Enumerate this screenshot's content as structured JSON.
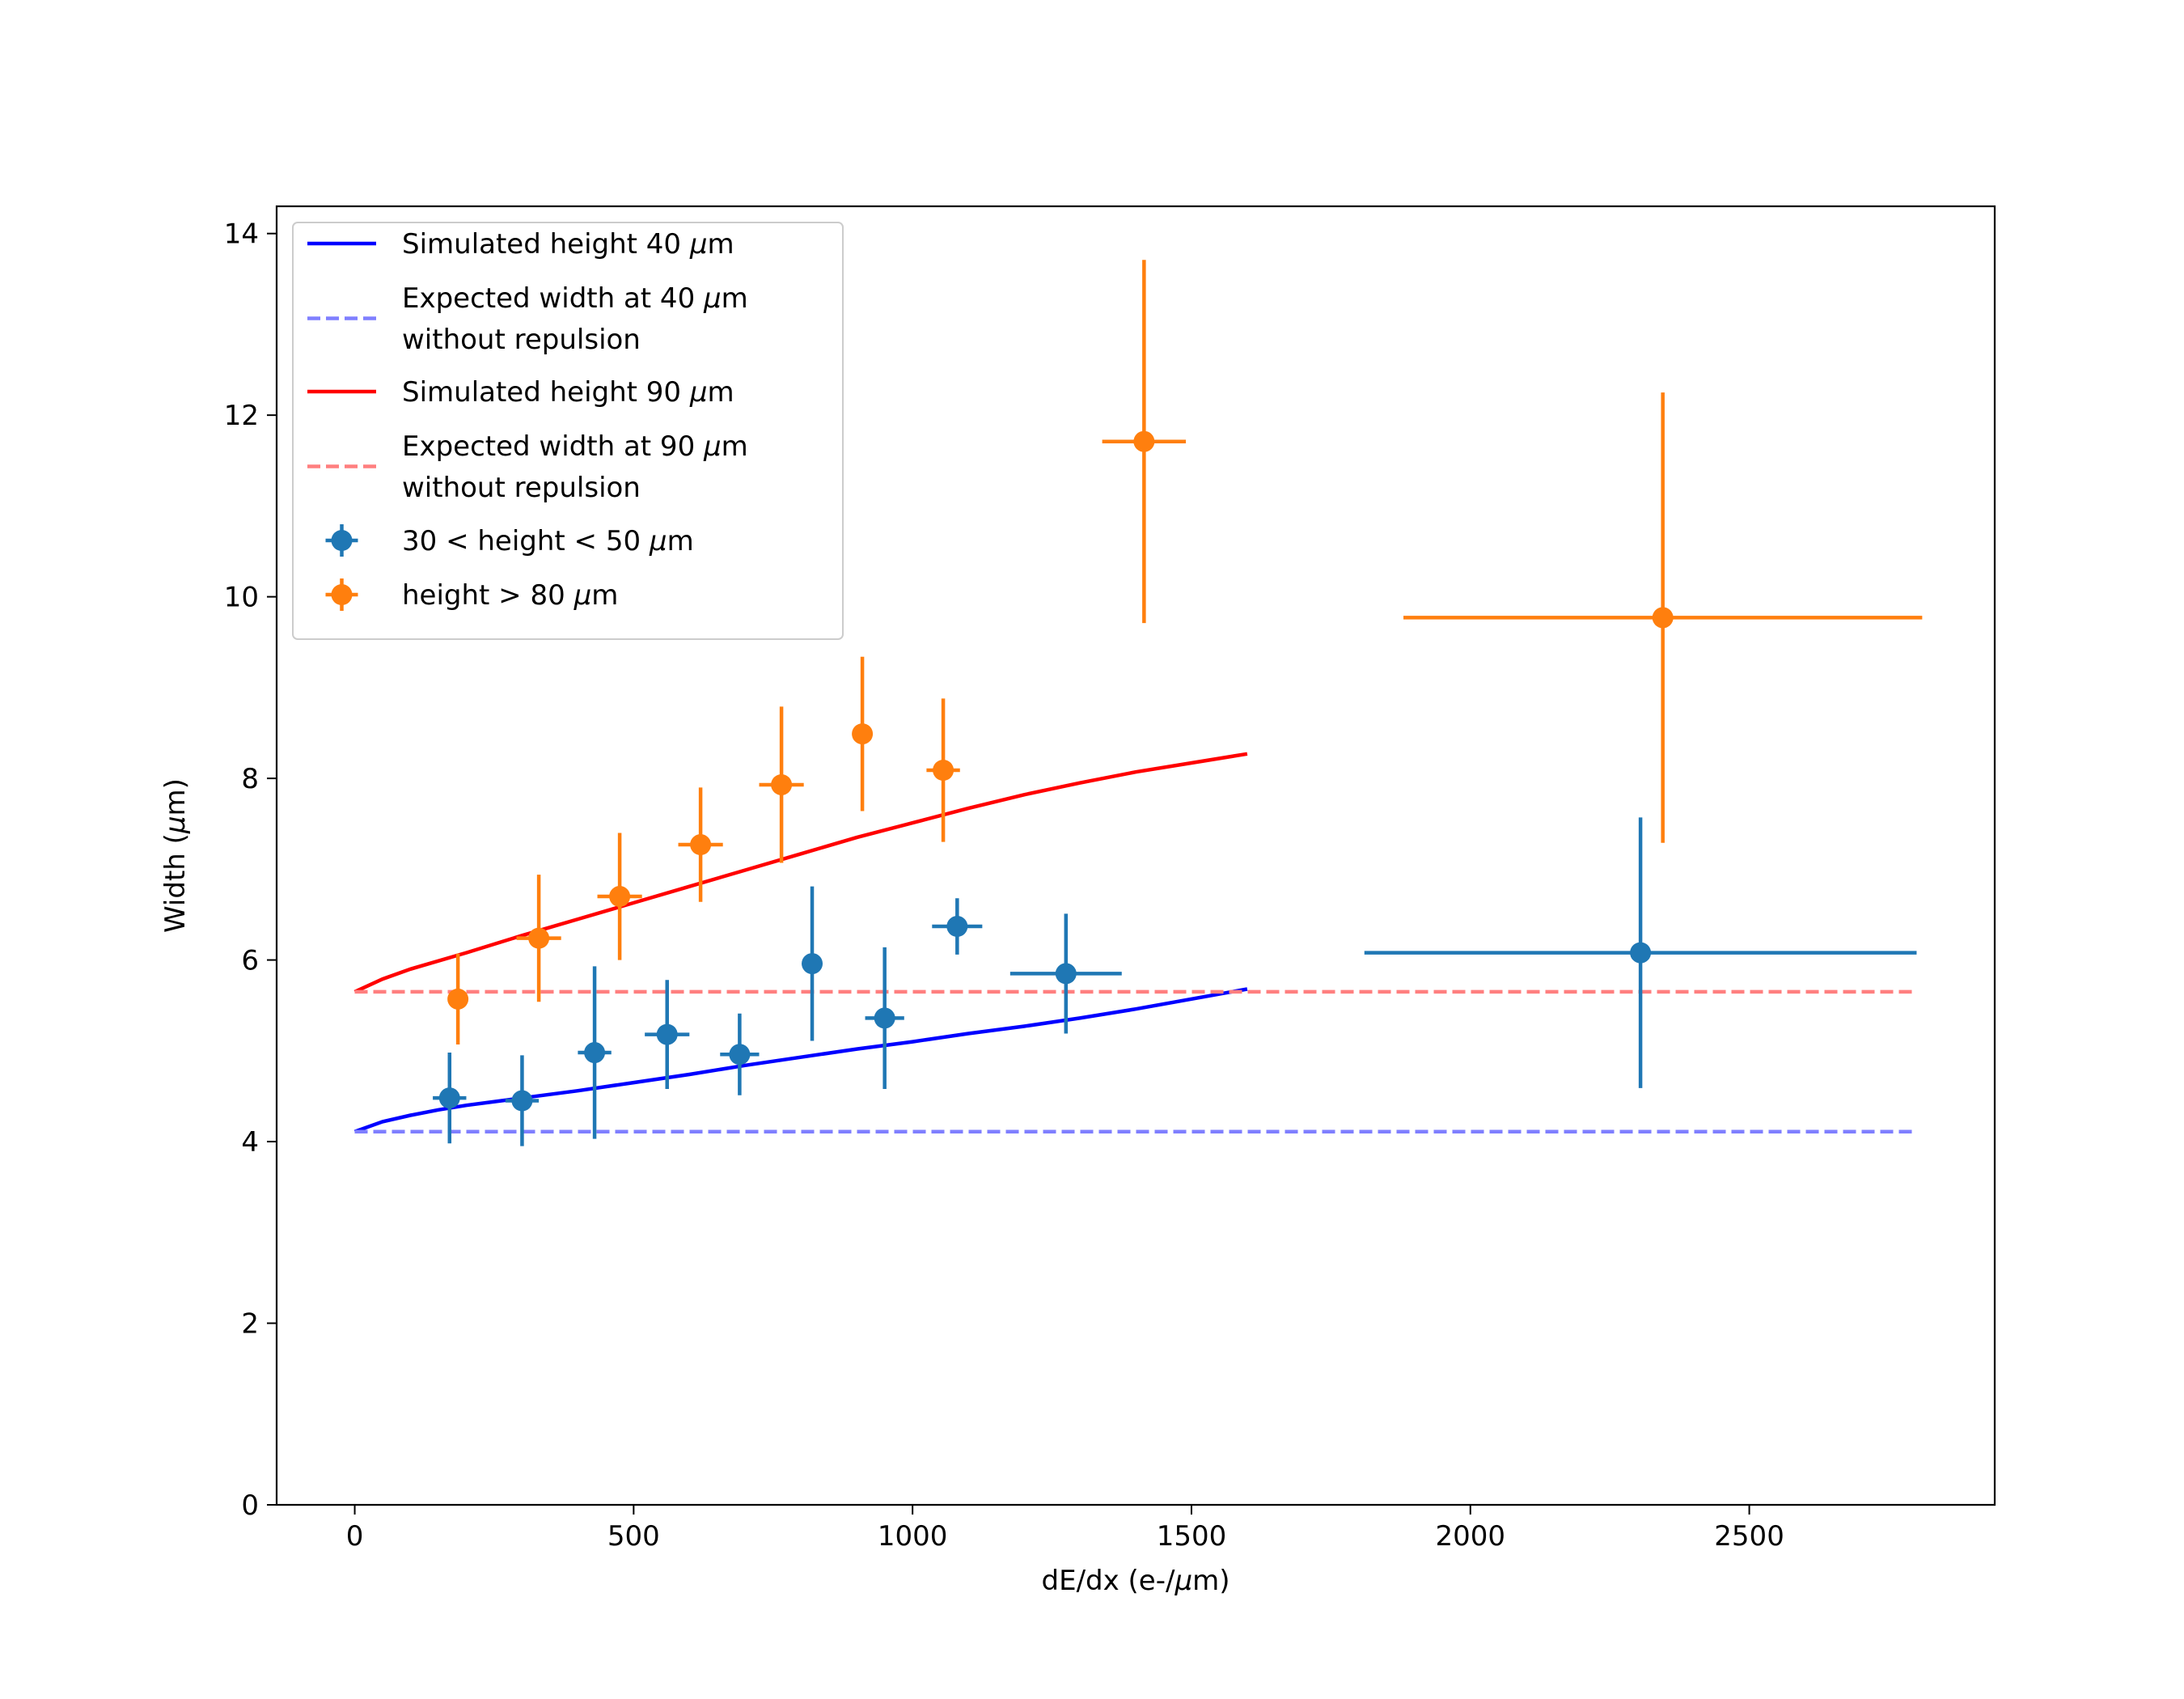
{
  "chart_data": {
    "type": "scatter",
    "xlabel_parts": [
      "dE/dx (e-/",
      "μ",
      "m)"
    ],
    "ylabel_parts": [
      "Width (",
      "μ",
      "m)"
    ],
    "xlim": [
      -140,
      2940
    ],
    "ylim": [
      0,
      14.3
    ],
    "xticks": [
      0,
      500,
      1000,
      1500,
      2000,
      2500
    ],
    "yticks": [
      0,
      2,
      4,
      6,
      8,
      10,
      12,
      14
    ],
    "grid": false,
    "legend_position": "top-left",
    "lines": [
      {
        "name_parts": [
          "Simulated height 40 ",
          "μ",
          "m"
        ],
        "color": "#0000ff",
        "style": "solid",
        "x": [
          0,
          50,
          100,
          150,
          200,
          300,
          400,
          500,
          600,
          700,
          800,
          900,
          1000,
          1100,
          1200,
          1300,
          1400,
          1500,
          1600
        ],
        "y": [
          4.11,
          4.22,
          4.29,
          4.35,
          4.4,
          4.48,
          4.56,
          4.65,
          4.74,
          4.84,
          4.93,
          5.02,
          5.1,
          5.19,
          5.27,
          5.36,
          5.46,
          5.57,
          5.68
        ]
      },
      {
        "name_parts": [
          "Expected width at 40 ",
          "μ",
          "m"
        ],
        "name_line2": "without repulsion",
        "color": "#7f7fff",
        "style": "dashed",
        "x": [
          0,
          2800
        ],
        "y": [
          4.11,
          4.11
        ]
      },
      {
        "name_parts": [
          "Simulated height 90 ",
          "μ",
          "m"
        ],
        "color": "#ff0000",
        "style": "solid",
        "x": [
          0,
          50,
          100,
          200,
          300,
          400,
          500,
          600,
          700,
          800,
          900,
          1000,
          1100,
          1200,
          1300,
          1400,
          1500,
          1600
        ],
        "y": [
          5.65,
          5.79,
          5.9,
          6.08,
          6.27,
          6.45,
          6.63,
          6.81,
          6.99,
          7.17,
          7.35,
          7.51,
          7.67,
          7.82,
          7.95,
          8.07,
          8.17,
          8.27
        ]
      },
      {
        "name_parts": [
          "Expected width at 90 ",
          "μ",
          "m"
        ],
        "name_line2": "without repulsion",
        "color": "#ff7f7f",
        "style": "dashed",
        "x": [
          0,
          2800
        ],
        "y": [
          5.65,
          5.65
        ]
      }
    ],
    "errorbar_series": [
      {
        "name_parts": [
          "30 < height < 50 ",
          "μ",
          "m"
        ],
        "color": "#1f77b4",
        "points": [
          {
            "x": 170,
            "y": 4.48,
            "xerr": 30,
            "yerr": 0.5
          },
          {
            "x": 300,
            "y": 4.45,
            "xerr": 30,
            "yerr": 0.5
          },
          {
            "x": 430,
            "y": 4.98,
            "xerr": 30,
            "yerr": 0.95
          },
          {
            "x": 560,
            "y": 5.18,
            "xerr": 40,
            "yerr": 0.6
          },
          {
            "x": 690,
            "y": 4.96,
            "xerr": 35,
            "yerr": 0.45
          },
          {
            "x": 820,
            "y": 5.96,
            "xerr": 0,
            "yerr": 0.85
          },
          {
            "x": 950,
            "y": 5.36,
            "xerr": 35,
            "yerr": 0.78
          },
          {
            "x": 1080,
            "y": 6.37,
            "xerr": 45,
            "yerr": 0.31
          },
          {
            "x": 1275,
            "y": 5.85,
            "xerr": 100,
            "yerr": 0.66
          },
          {
            "x": 2305,
            "y": 6.08,
            "xerr": 495,
            "yerr": 1.49
          }
        ]
      },
      {
        "name_parts": [
          "height > 80 ",
          "μ",
          "m"
        ],
        "color": "#ff7f0e",
        "points": [
          {
            "x": 185,
            "y": 5.57,
            "xerr": 0,
            "yerr": 0.5
          },
          {
            "x": 330,
            "y": 6.24,
            "xerr": 40,
            "yerr": 0.7
          },
          {
            "x": 475,
            "y": 6.7,
            "xerr": 40,
            "yerr": 0.7
          },
          {
            "x": 620,
            "y": 7.27,
            "xerr": 40,
            "yerr": 0.63
          },
          {
            "x": 765,
            "y": 7.93,
            "xerr": 40,
            "yerr": 0.86
          },
          {
            "x": 910,
            "y": 8.49,
            "xerr": 0,
            "yerr": 0.85
          },
          {
            "x": 1055,
            "y": 8.09,
            "xerr": 30,
            "yerr": 0.79
          },
          {
            "x": 1415,
            "y": 11.71,
            "xerr": 75,
            "yerr": 2.0
          },
          {
            "x": 2345,
            "y": 9.77,
            "xerr": 465,
            "yerr": 2.48
          }
        ]
      }
    ]
  }
}
